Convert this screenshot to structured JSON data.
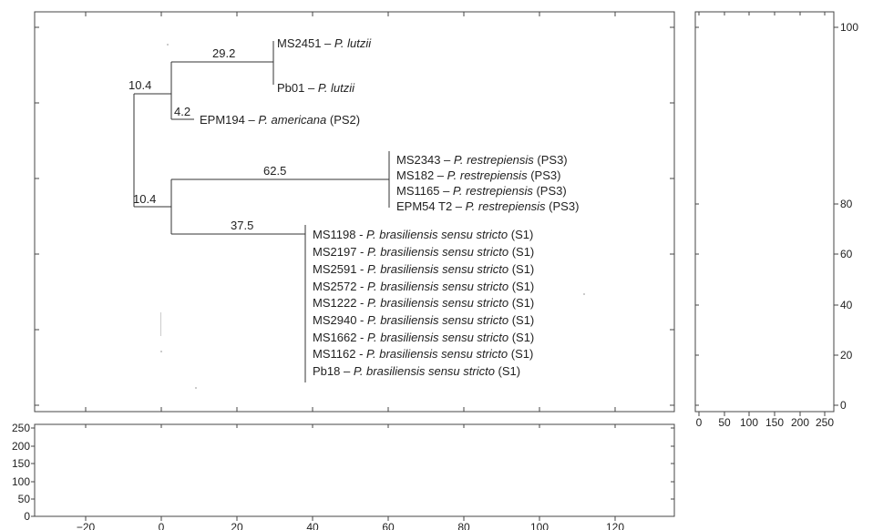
{
  "tree": {
    "branch_labels": [
      {
        "id": "b1",
        "text": "10.4"
      },
      {
        "id": "b2",
        "text": "29.2"
      },
      {
        "id": "b3",
        "text": "4.2"
      },
      {
        "id": "b4",
        "text": "10.4"
      },
      {
        "id": "b5",
        "text": "62.5"
      },
      {
        "id": "b6",
        "text": "37.5"
      }
    ],
    "leaves": [
      {
        "id": "lutz1",
        "parts": [
          {
            "t": "MS2451 – "
          },
          {
            "t": "P. lutzii",
            "i": true
          }
        ]
      },
      {
        "id": "lutz2",
        "parts": [
          {
            "t": "Pb01 – "
          },
          {
            "t": "P. lutzii",
            "i": true
          }
        ]
      },
      {
        "id": "amer",
        "parts": [
          {
            "t": "EPM194 – "
          },
          {
            "t": "P. americana",
            "i": true
          },
          {
            "t": " (PS2)"
          }
        ]
      },
      {
        "id": "res1",
        "parts": [
          {
            "t": "MS2343 – "
          },
          {
            "t": "P. restrepiensis",
            "i": true
          },
          {
            "t": " (PS3)"
          }
        ]
      },
      {
        "id": "res2",
        "parts": [
          {
            "t": "MS182 – "
          },
          {
            "t": "P. restrepiensis",
            "i": true
          },
          {
            "t": " (PS3)"
          }
        ]
      },
      {
        "id": "res3",
        "parts": [
          {
            "t": "MS1165 – "
          },
          {
            "t": "P. restrepiensis",
            "i": true
          },
          {
            "t": " (PS3)"
          }
        ]
      },
      {
        "id": "res4",
        "parts": [
          {
            "t": "EPM54 T2 – "
          },
          {
            "t": "P. restrepiensis",
            "i": true
          },
          {
            "t": " (PS3)"
          }
        ]
      },
      {
        "id": "bra1",
        "parts": [
          {
            "t": "MS1198 - "
          },
          {
            "t": "P. brasiliensis sensu stricto",
            "i": true
          },
          {
            "t": " (S1)"
          }
        ]
      },
      {
        "id": "bra2",
        "parts": [
          {
            "t": "MS2197 - "
          },
          {
            "t": "P. brasiliensis sensu stricto",
            "i": true
          },
          {
            "t": " (S1)"
          }
        ]
      },
      {
        "id": "bra3",
        "parts": [
          {
            "t": "MS2591 - "
          },
          {
            "t": "P. brasiliensis sensu stricto",
            "i": true
          },
          {
            "t": " (S1)"
          }
        ]
      },
      {
        "id": "bra4",
        "parts": [
          {
            "t": "MS2572 - "
          },
          {
            "t": "P. brasiliensis sensu stricto",
            "i": true
          },
          {
            "t": " (S1)"
          }
        ]
      },
      {
        "id": "bra5",
        "parts": [
          {
            "t": "MS1222 - "
          },
          {
            "t": "P. brasiliensis sensu stricto",
            "i": true
          },
          {
            "t": " (S1)"
          }
        ]
      },
      {
        "id": "bra6",
        "parts": [
          {
            "t": "MS2940 - "
          },
          {
            "t": "P. brasiliensis sensu stricto",
            "i": true
          },
          {
            "t": " (S1)"
          }
        ]
      },
      {
        "id": "bra7",
        "parts": [
          {
            "t": "MS1662 - "
          },
          {
            "t": "P. brasiliensis sensu stricto",
            "i": true
          },
          {
            "t": " (S1)"
          }
        ]
      },
      {
        "id": "bra8",
        "parts": [
          {
            "t": "MS1162 - "
          },
          {
            "t": "P. brasiliensis sensu stricto",
            "i": true
          },
          {
            "t": " (S1)"
          }
        ]
      },
      {
        "id": "bra9",
        "parts": [
          {
            "t": "Pb18 – "
          },
          {
            "t": "P. brasiliensis sensu stricto",
            "i": true
          },
          {
            "t": " (S1)"
          }
        ]
      }
    ]
  },
  "axes": {
    "bottom_x_ticks": [
      "−20",
      "0",
      "20",
      "40",
      "60",
      "80",
      "100",
      "120"
    ],
    "bottom_y_ticks": [
      "0",
      "50",
      "100",
      "150",
      "200",
      "250"
    ],
    "right_x_ticks": [
      "0",
      "50",
      "100",
      "150",
      "200",
      "250"
    ],
    "right_y_ticks": [
      "0",
      "20",
      "40",
      "60",
      "80",
      "100"
    ]
  },
  "colors": {
    "line": "#333333",
    "frame": "#444444",
    "text": "#222222"
  }
}
